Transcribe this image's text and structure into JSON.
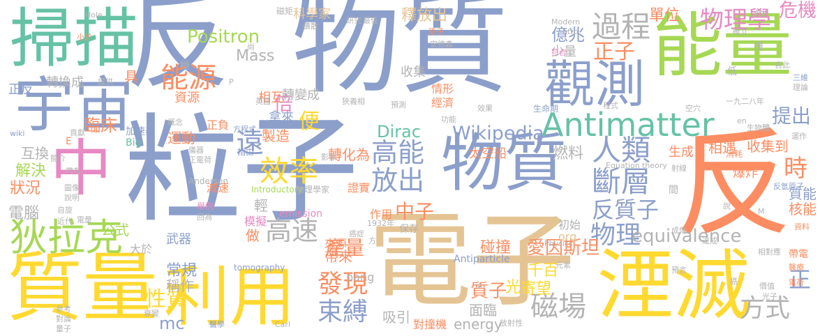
{
  "colors": {
    "blue": "#8c9fcb",
    "tan": "#e5c494",
    "yellow": "#ffd92f",
    "green": "#66c2a5",
    "lime": "#a6d854",
    "orange": "#fc8d62",
    "pink": "#e78ac3",
    "gray": "#b3b3b3"
  },
  "words": [
    {
      "text": "反",
      "color": "blue"
    },
    {
      "text": "物質",
      "color": "blue"
    },
    {
      "text": "粒子",
      "color": "blue"
    },
    {
      "text": "電子",
      "color": "tan"
    },
    {
      "text": "能量",
      "color": "lime"
    },
    {
      "text": "反",
      "color": "orange"
    },
    {
      "text": "掃描",
      "color": "green"
    },
    {
      "text": "宇宙",
      "color": "blue"
    },
    {
      "text": "中",
      "color": "pink"
    },
    {
      "text": "質量",
      "color": "yellow"
    },
    {
      "text": "利用",
      "color": "yellow"
    },
    {
      "text": "湮滅",
      "color": "yellow"
    },
    {
      "text": "物質",
      "color": "blue"
    },
    {
      "text": "觀測",
      "color": "blue"
    },
    {
      "text": "Antimatter",
      "color": "green"
    },
    {
      "text": "狄拉克",
      "color": "lime"
    },
    {
      "text": "過程",
      "color": "gray"
    },
    {
      "text": "物理學",
      "color": "pink"
    },
    {
      "text": "危機",
      "color": "pink"
    },
    {
      "text": "能源",
      "color": "orange"
    },
    {
      "text": "Positron",
      "color": "lime"
    },
    {
      "text": "倍",
      "color": "pink"
    },
    {
      "text": "效率",
      "color": "yellow"
    },
    {
      "text": "高能",
      "color": "blue"
    },
    {
      "text": "放出",
      "color": "blue"
    },
    {
      "text": "人類",
      "color": "blue"
    },
    {
      "text": "斷層",
      "color": "blue"
    },
    {
      "text": "Wikipedia",
      "color": "blue"
    },
    {
      "text": "Dirac",
      "color": "green"
    },
    {
      "text": "臨床",
      "color": "orange"
    },
    {
      "text": "遠",
      "color": "blue"
    },
    {
      "text": "高速",
      "color": "gray"
    },
    {
      "text": "發現",
      "color": "orange"
    },
    {
      "text": "束縛",
      "color": "blue"
    },
    {
      "text": "磁場",
      "color": "gray"
    },
    {
      "text": "方式",
      "color": "gray"
    },
    {
      "text": "物理",
      "color": "blue"
    },
    {
      "text": "反質子",
      "color": "blue"
    },
    {
      "text": "中子",
      "color": "orange"
    },
    {
      "text": "正子",
      "color": "orange"
    },
    {
      "text": "提出",
      "color": "blue"
    },
    {
      "text": "正",
      "color": "blue"
    },
    {
      "text": "時",
      "color": "orange"
    },
    {
      "text": "便",
      "color": "yellow"
    },
    {
      "text": "性質",
      "color": "yellow"
    },
    {
      "text": "產量",
      "color": "orange"
    },
    {
      "text": "愛因斯坦",
      "color": "orange"
    },
    {
      "text": "equivalence",
      "color": "gray"
    },
    {
      "text": "電腦",
      "color": "gray"
    },
    {
      "text": "解決",
      "color": "lime"
    },
    {
      "text": "狀況",
      "color": "orange"
    },
    {
      "text": "質子",
      "color": "orange"
    },
    {
      "text": "mc",
      "color": "blue"
    },
    {
      "text": "公式",
      "color": "lime"
    },
    {
      "text": "碰撞",
      "color": "orange"
    },
    {
      "text": "千百",
      "color": "yellow"
    },
    {
      "text": "寄望",
      "color": "yellow"
    },
    {
      "text": "光",
      "color": "yellow"
    },
    {
      "text": "面臨",
      "color": "gray"
    },
    {
      "text": "吸引",
      "color": "gray"
    },
    {
      "text": "對撞機",
      "color": "orange"
    },
    {
      "text": "energy",
      "color": "gray"
    },
    {
      "text": "Mass",
      "color": "gray"
    },
    {
      "text": "轉換成",
      "color": "gray"
    },
    {
      "text": "轉變成",
      "color": "gray"
    },
    {
      "text": "轉化為",
      "color": "orange"
    },
    {
      "text": "燃料",
      "color": "gray"
    },
    {
      "text": "相互",
      "color": "orange"
    },
    {
      "text": "拿來",
      "color": "blue"
    },
    {
      "text": "製造",
      "color": "orange"
    },
    {
      "text": "運動",
      "color": "orange"
    },
    {
      "text": "加速器",
      "color": "blue"
    },
    {
      "text": "互換",
      "color": "gray"
    },
    {
      "text": "正負",
      "color": "orange"
    },
    {
      "text": "資源",
      "color": "orange"
    },
    {
      "text": "釋放出",
      "color": "tan"
    },
    {
      "text": "科學家",
      "color": "tan"
    },
    {
      "text": "單位",
      "color": "orange"
    },
    {
      "text": "億兆",
      "color": "blue"
    },
    {
      "text": "少量",
      "color": "gray"
    },
    {
      "text": "收集",
      "color": "gray"
    },
    {
      "text": "經濟",
      "color": "orange"
    },
    {
      "text": "情形",
      "color": "orange"
    },
    {
      "text": "常規",
      "color": "blue"
    },
    {
      "text": "稱作",
      "color": "gray"
    },
    {
      "text": "武器",
      "color": "blue"
    },
    {
      "text": "大於",
      "color": "gray"
    },
    {
      "text": "做",
      "color": "orange"
    },
    {
      "text": "模擬",
      "color": "pink"
    },
    {
      "text": "帶來",
      "color": "orange"
    },
    {
      "text": "來源",
      "color": "orange"
    },
    {
      "text": "作用",
      "color": "orange"
    },
    {
      "text": "輕",
      "color": "gray"
    },
    {
      "text": "相遇",
      "color": "orange"
    },
    {
      "text": "收集到",
      "color": "orange"
    },
    {
      "text": "質能",
      "color": "blue"
    },
    {
      "text": "核能",
      "color": "orange"
    },
    {
      "text": "生成",
      "color": "orange"
    },
    {
      "text": "爆炸",
      "color": "orange"
    },
    {
      "text": "太空船",
      "color": "orange"
    },
    {
      "text": "證實",
      "color": "orange"
    },
    {
      "text": "減速",
      "color": "orange"
    },
    {
      "text": "初始",
      "color": "gray"
    },
    {
      "text": "bang",
      "color": "gray"
    },
    {
      "text": "org",
      "color": "tan"
    },
    {
      "text": "tomography",
      "color": "blue"
    },
    {
      "text": "Antiparticle",
      "color": "blue"
    },
    {
      "text": "emission",
      "color": "pink"
    },
    {
      "text": "Introductory",
      "color": "lime"
    },
    {
      "text": "物理學家",
      "color": "gray"
    },
    {
      "text": "保存",
      "color": "gray"
    },
    {
      "text": "Anderson",
      "color": "gray"
    },
    {
      "text": "具",
      "color": "orange"
    },
    {
      "text": "提供",
      "color": "gray"
    },
    {
      "text": "極",
      "color": "gray"
    },
    {
      "text": "擴散",
      "color": "gray"
    },
    {
      "text": "最佳",
      "color": "gray"
    },
    {
      "text": "研究",
      "color": "gray"
    },
    {
      "text": "磁矩",
      "color": "gray"
    },
    {
      "text": "Hole",
      "color": "gray"
    },
    {
      "text": "小於",
      "color": "orange"
    },
    {
      "text": "正反",
      "color": "blue"
    },
    {
      "text": "概念",
      "color": "gray"
    },
    {
      "text": "方程式",
      "color": "blue"
    },
    {
      "text": "貢獻",
      "color": "gray"
    },
    {
      "text": "wiki",
      "color": "blue"
    },
    {
      "text": "Big",
      "color": "green"
    },
    {
      "text": "簡介",
      "color": "gray"
    },
    {
      "text": "儀器",
      "color": "gray"
    },
    {
      "text": "正電荷",
      "color": "gray"
    },
    {
      "text": "指由",
      "color": "blue"
    },
    {
      "text": "圖像",
      "color": "gray"
    },
    {
      "text": "帶有",
      "color": "gray"
    },
    {
      "text": "說明",
      "color": "gray"
    },
    {
      "text": "自旋",
      "color": "gray"
    },
    {
      "text": "近代",
      "color": "gray"
    },
    {
      "text": "電量",
      "color": "gray"
    },
    {
      "text": "參考",
      "color": "gray"
    },
    {
      "text": "對論",
      "color": "gray"
    },
    {
      "text": "量子",
      "color": "gray"
    },
    {
      "text": "衰變",
      "color": "gray"
    },
    {
      "text": "醫學",
      "color": "blue"
    },
    {
      "text": "Carl",
      "color": "gray"
    },
    {
      "text": "放射性",
      "color": "gray"
    },
    {
      "text": "舉例",
      "color": "pink"
    },
    {
      "text": "回為",
      "color": "gray"
    },
    {
      "text": "影像",
      "color": "gray"
    },
    {
      "text": "1932年",
      "color": "gray"
    },
    {
      "text": "癌症",
      "color": "gray"
    },
    {
      "text": "方",
      "color": "gray"
    },
    {
      "text": "尚",
      "color": "gray"
    },
    {
      "text": "原子",
      "color": "orange"
    },
    {
      "text": "安德森",
      "color": "gray"
    },
    {
      "text": "符合",
      "color": "pink"
    },
    {
      "text": "http",
      "color": "gray"
    },
    {
      "text": "Modern",
      "color": "gray"
    },
    {
      "text": "分析",
      "color": "gray"
    },
    {
      "text": "確立",
      "color": "gray"
    },
    {
      "text": "效果",
      "color": "gray"
    },
    {
      "text": "預測",
      "color": "gray"
    },
    {
      "text": "狹義相",
      "color": "gray"
    },
    {
      "text": "英國",
      "color": "gray"
    },
    {
      "text": "功能",
      "color": "gray"
    },
    {
      "text": "生命期",
      "color": "blue"
    },
    {
      "text": "一九二八年",
      "color": "gray"
    },
    {
      "text": "空穴",
      "color": "gray"
    },
    {
      "text": "程式",
      "color": "gray"
    },
    {
      "text": "低",
      "color": "gray"
    },
    {
      "text": "撞",
      "color": "gray"
    },
    {
      "text": "自此",
      "color": "gray"
    },
    {
      "text": "三維",
      "color": "blue"
    },
    {
      "text": "理論",
      "color": "gray"
    },
    {
      "text": "en",
      "color": "gray"
    },
    {
      "text": "生物體",
      "color": "gray"
    },
    {
      "text": "運作",
      "color": "gray"
    },
    {
      "text": "消耗",
      "color": "orange"
    },
    {
      "text": "Equation",
      "color": "gray"
    },
    {
      "text": "theory",
      "color": "gray"
    },
    {
      "text": "射線",
      "color": "gray"
    },
    {
      "text": "間",
      "color": "gray"
    },
    {
      "text": "反氫原子",
      "color": "blue"
    },
    {
      "text": "說",
      "color": "gray"
    },
    {
      "text": "M",
      "color": "gray"
    },
    {
      "text": "資料",
      "color": "orange"
    },
    {
      "text": "成像",
      "color": "gray"
    },
    {
      "text": "Physics",
      "color": "gray"
    },
    {
      "text": "達成",
      "color": "gray"
    },
    {
      "text": "相對應",
      "color": "gray"
    },
    {
      "text": "帶電",
      "color": "orange"
    },
    {
      "text": "醫療",
      "color": "orange"
    },
    {
      "text": "電荷",
      "color": "orange"
    },
    {
      "text": "價值",
      "color": "gray"
    },
    {
      "text": "光子",
      "color": "gray"
    },
    {
      "text": "預言",
      "color": "gray"
    },
    {
      "text": "癌",
      "color": "gray"
    },
    {
      "text": "元素",
      "color": "gray"
    },
    {
      "text": "A",
      "color": "gray"
    },
    {
      "text": "P",
      "color": "gray"
    },
    {
      "text": "E",
      "color": "orange"
    }
  ]
}
